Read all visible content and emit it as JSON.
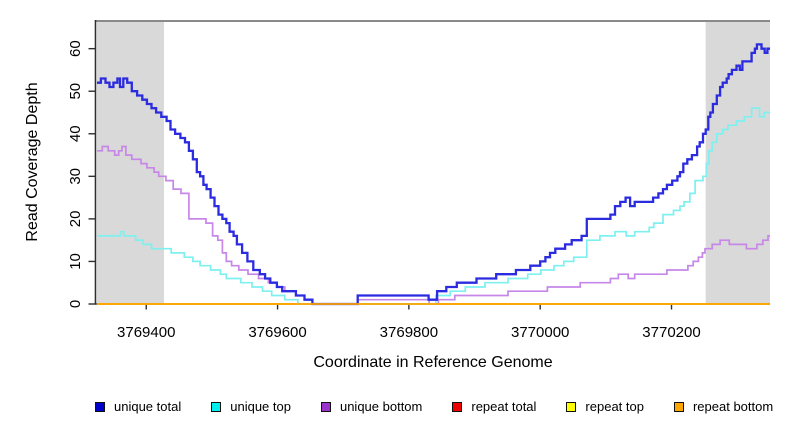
{
  "figure": {
    "xlabel": "Coordinate in Reference Genome",
    "ylabel": "Read Coverage Depth"
  },
  "legend": {
    "items": [
      {
        "label": "unique total",
        "color": "#0000CC"
      },
      {
        "label": "unique top",
        "color": "#00EEEE"
      },
      {
        "label": "unique bottom",
        "color": "#9933CC"
      },
      {
        "label": "repeat total",
        "color": "#EE0000"
      },
      {
        "label": "repeat top",
        "color": "#FFFF00"
      },
      {
        "label": "repeat bottom",
        "color": "#FFA500"
      }
    ]
  },
  "chart_data": {
    "type": "line",
    "subtype": "step",
    "title": "",
    "xlabel": "Coordinate in Reference Genome",
    "ylabel": "Read Coverage Depth",
    "xlim": [
      3769325,
      3770350
    ],
    "ylim": [
      0,
      66.5
    ],
    "x_ticks": [
      3769400,
      3769600,
      3769800,
      3770000,
      3770200
    ],
    "y_ticks": [
      0,
      10,
      20,
      30,
      40,
      50,
      60
    ],
    "grid": false,
    "legend_position": "bottom",
    "background_color": "#FFFFFF",
    "shaded_region_color": "#D9D9D9",
    "top_border_color": "#8A8A8A",
    "axis_color": "#2F2F2F",
    "shaded_regions": [
      {
        "x0": 3769325,
        "x1": 3769427
      },
      {
        "x0": 3770252,
        "x1": 3770350
      }
    ],
    "series": [
      {
        "name": "repeat total",
        "color": "#EE0000",
        "width": 1.5,
        "points": [
          [
            3769325,
            0
          ],
          [
            3770350,
            0
          ]
        ]
      },
      {
        "name": "repeat top",
        "color": "#FFFF00",
        "width": 1.5,
        "points": [
          [
            3769325,
            0
          ],
          [
            3770350,
            0
          ]
        ]
      },
      {
        "name": "unique bottom",
        "color": "#C787E8",
        "width": 1.7,
        "points": [
          [
            3769325,
            36
          ],
          [
            3769333,
            37
          ],
          [
            3769342,
            36
          ],
          [
            3769352,
            35
          ],
          [
            3769358,
            36
          ],
          [
            3769363,
            37
          ],
          [
            3769369,
            35
          ],
          [
            3769378,
            34
          ],
          [
            3769392,
            33
          ],
          [
            3769401,
            32
          ],
          [
            3769412,
            31
          ],
          [
            3769419,
            30
          ],
          [
            3769430,
            29
          ],
          [
            3769441,
            27
          ],
          [
            3769453,
            26
          ],
          [
            3769465,
            20
          ],
          [
            3769491,
            19
          ],
          [
            3769501,
            16
          ],
          [
            3769509,
            15
          ],
          [
            3769516,
            12
          ],
          [
            3769522,
            10
          ],
          [
            3769530,
            9
          ],
          [
            3769541,
            8
          ],
          [
            3769555,
            7
          ],
          [
            3769571,
            6
          ],
          [
            3769586,
            5
          ],
          [
            3769599,
            4
          ],
          [
            3769611,
            3
          ],
          [
            3769628,
            2
          ],
          [
            3769641,
            1
          ],
          [
            3769653,
            0
          ],
          [
            3769722,
            1
          ],
          [
            3769831,
            0
          ],
          [
            3769845,
            1
          ],
          [
            3769870,
            2
          ],
          [
            3769951,
            3
          ],
          [
            3770011,
            4
          ],
          [
            3770061,
            5
          ],
          [
            3770107,
            6
          ],
          [
            3770119,
            7
          ],
          [
            3770134,
            6
          ],
          [
            3770144,
            7
          ],
          [
            3770193,
            8
          ],
          [
            3770225,
            9
          ],
          [
            3770233,
            10
          ],
          [
            3770241,
            11
          ],
          [
            3770247,
            12
          ],
          [
            3770251,
            13
          ],
          [
            3770262,
            14
          ],
          [
            3770274,
            15
          ],
          [
            3770288,
            14
          ],
          [
            3770314,
            13
          ],
          [
            3770330,
            14
          ],
          [
            3770339,
            15
          ],
          [
            3770347,
            16
          ]
        ]
      },
      {
        "name": "unique top",
        "color": "#7FF0F0",
        "width": 1.7,
        "points": [
          [
            3769325,
            16
          ],
          [
            3769361,
            17
          ],
          [
            3769366,
            16
          ],
          [
            3769384,
            15
          ],
          [
            3769395,
            14
          ],
          [
            3769408,
            13
          ],
          [
            3769438,
            12
          ],
          [
            3769458,
            11
          ],
          [
            3769471,
            10
          ],
          [
            3769482,
            9
          ],
          [
            3769498,
            8
          ],
          [
            3769513,
            7
          ],
          [
            3769522,
            6
          ],
          [
            3769544,
            5
          ],
          [
            3769561,
            4
          ],
          [
            3769577,
            3
          ],
          [
            3769591,
            2
          ],
          [
            3769611,
            1
          ],
          [
            3769631,
            0
          ],
          [
            3769841,
            2
          ],
          [
            3769863,
            3
          ],
          [
            3769886,
            4
          ],
          [
            3769916,
            5
          ],
          [
            3769951,
            6
          ],
          [
            3769981,
            7
          ],
          [
            3770001,
            8
          ],
          [
            3770021,
            9
          ],
          [
            3770036,
            10
          ],
          [
            3770051,
            11
          ],
          [
            3770071,
            15
          ],
          [
            3770091,
            16
          ],
          [
            3770114,
            17
          ],
          [
            3770131,
            16
          ],
          [
            3770144,
            17
          ],
          [
            3770166,
            18
          ],
          [
            3770173,
            19
          ],
          [
            3770187,
            21
          ],
          [
            3770203,
            22
          ],
          [
            3770213,
            23
          ],
          [
            3770219,
            24
          ],
          [
            3770228,
            26
          ],
          [
            3770236,
            29
          ],
          [
            3770248,
            30
          ],
          [
            3770253,
            33
          ],
          [
            3770257,
            36
          ],
          [
            3770262,
            38
          ],
          [
            3770269,
            40
          ],
          [
            3770278,
            41
          ],
          [
            3770286,
            42
          ],
          [
            3770299,
            43
          ],
          [
            3770311,
            44
          ],
          [
            3770322,
            46
          ],
          [
            3770334,
            44
          ],
          [
            3770341,
            45
          ]
        ]
      },
      {
        "name": "unique total",
        "color": "#2B2BE0",
        "width": 2.3,
        "points": [
          [
            3769325,
            52
          ],
          [
            3769331,
            53
          ],
          [
            3769338,
            52
          ],
          [
            3769344,
            51
          ],
          [
            3769350,
            52
          ],
          [
            3769356,
            53
          ],
          [
            3769360,
            51
          ],
          [
            3769365,
            53
          ],
          [
            3769371,
            52
          ],
          [
            3769378,
            50
          ],
          [
            3769386,
            49
          ],
          [
            3769394,
            48
          ],
          [
            3769401,
            47
          ],
          [
            3769408,
            46
          ],
          [
            3769415,
            45
          ],
          [
            3769423,
            44
          ],
          [
            3769431,
            43
          ],
          [
            3769437,
            41
          ],
          [
            3769444,
            40
          ],
          [
            3769452,
            39
          ],
          [
            3769459,
            38
          ],
          [
            3769465,
            36
          ],
          [
            3769471,
            34
          ],
          [
            3769477,
            31
          ],
          [
            3769482,
            30
          ],
          [
            3769487,
            28
          ],
          [
            3769492,
            27
          ],
          [
            3769498,
            25
          ],
          [
            3769504,
            23
          ],
          [
            3769510,
            21
          ],
          [
            3769516,
            20
          ],
          [
            3769522,
            19
          ],
          [
            3769527,
            17
          ],
          [
            3769533,
            16
          ],
          [
            3769538,
            14
          ],
          [
            3769546,
            12
          ],
          [
            3769554,
            10
          ],
          [
            3769563,
            8
          ],
          [
            3769573,
            7
          ],
          [
            3769581,
            6
          ],
          [
            3769589,
            5
          ],
          [
            3769599,
            4
          ],
          [
            3769607,
            3
          ],
          [
            3769628,
            2
          ],
          [
            3769641,
            1
          ],
          [
            3769653,
            0
          ],
          [
            3769722,
            2
          ],
          [
            3769830,
            1
          ],
          [
            3769843,
            3
          ],
          [
            3769857,
            4
          ],
          [
            3769873,
            5
          ],
          [
            3769903,
            6
          ],
          [
            3769933,
            7
          ],
          [
            3769963,
            8
          ],
          [
            3769985,
            9
          ],
          [
            3770000,
            10
          ],
          [
            3770008,
            11
          ],
          [
            3770015,
            12
          ],
          [
            3770023,
            13
          ],
          [
            3770038,
            14
          ],
          [
            3770048,
            15
          ],
          [
            3770063,
            16
          ],
          [
            3770071,
            20
          ],
          [
            3770107,
            21
          ],
          [
            3770114,
            23
          ],
          [
            3770122,
            24
          ],
          [
            3770130,
            25
          ],
          [
            3770137,
            23
          ],
          [
            3770144,
            24
          ],
          [
            3770172,
            25
          ],
          [
            3770180,
            26
          ],
          [
            3770187,
            27
          ],
          [
            3770193,
            28
          ],
          [
            3770201,
            29
          ],
          [
            3770209,
            30
          ],
          [
            3770213,
            31
          ],
          [
            3770218,
            33
          ],
          [
            3770224,
            34
          ],
          [
            3770231,
            35
          ],
          [
            3770239,
            37
          ],
          [
            3770243,
            38
          ],
          [
            3770248,
            40
          ],
          [
            3770252,
            41
          ],
          [
            3770256,
            44
          ],
          [
            3770259,
            45
          ],
          [
            3770263,
            47
          ],
          [
            3770269,
            49
          ],
          [
            3770274,
            51
          ],
          [
            3770278,
            52
          ],
          [
            3770284,
            53
          ],
          [
            3770287,
            54
          ],
          [
            3770292,
            55
          ],
          [
            3770299,
            56
          ],
          [
            3770304,
            55
          ],
          [
            3770308,
            57
          ],
          [
            3770322,
            59
          ],
          [
            3770327,
            60
          ],
          [
            3770330,
            61
          ],
          [
            3770337,
            60
          ],
          [
            3770342,
            59
          ],
          [
            3770346,
            60
          ]
        ]
      },
      {
        "name": "repeat bottom",
        "color": "#FFA500",
        "width": 1.8,
        "points": [
          [
            3769325,
            0
          ],
          [
            3770350,
            0
          ]
        ]
      }
    ]
  }
}
